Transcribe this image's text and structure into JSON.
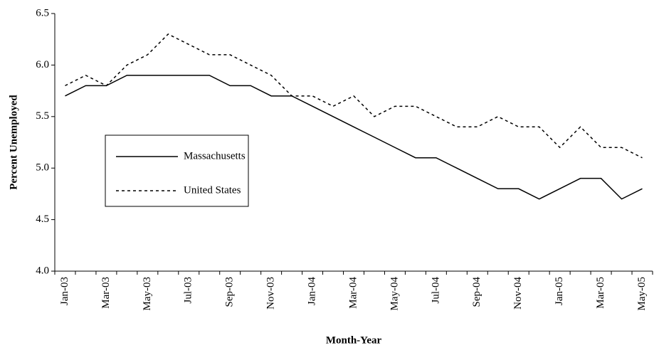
{
  "chart_data": {
    "type": "line",
    "x_label": "Month-Year",
    "y_label": "Percent Unemployed",
    "categories": [
      "Jan-03",
      null,
      "Mar-03",
      null,
      "May-03",
      null,
      "Jul-03",
      null,
      "Sep-03",
      null,
      "Nov-03",
      null,
      "Jan-04",
      null,
      "Mar-04",
      null,
      "May-04",
      null,
      "Jul-04",
      null,
      "Sep-04",
      null,
      "Nov-04",
      null,
      "Jan-05",
      null,
      "Mar-05",
      null,
      "May-05"
    ],
    "series": [
      {
        "name": "Massachusetts",
        "color": "#000000",
        "style": "solid",
        "values": [
          5.7,
          5.8,
          5.8,
          5.9,
          5.9,
          5.9,
          5.9,
          5.9,
          5.8,
          5.8,
          5.7,
          5.7,
          5.6,
          5.5,
          5.4,
          5.3,
          5.2,
          5.1,
          5.1,
          5.0,
          4.9,
          4.8,
          4.8,
          4.7,
          4.8,
          4.9,
          4.9,
          4.7,
          4.8
        ]
      },
      {
        "name": "United States",
        "color": "#000000",
        "style": "dashed",
        "values": [
          5.8,
          5.9,
          5.8,
          6.0,
          6.1,
          6.3,
          6.2,
          6.1,
          6.1,
          6.0,
          5.9,
          5.7,
          5.7,
          5.6,
          5.7,
          5.5,
          5.6,
          5.6,
          5.5,
          5.4,
          5.4,
          5.5,
          5.4,
          5.4,
          5.2,
          5.4,
          5.2,
          5.2,
          5.1
        ]
      }
    ],
    "ylim": [
      4.0,
      6.5
    ],
    "yticks": [
      {
        "value": 4.0,
        "label": "4.0"
      },
      4.5,
      {
        "value": 5.0,
        "label": "5.0"
      },
      5.5,
      {
        "value": 6.0,
        "label": "6.0"
      },
      6.5
    ],
    "grid": false,
    "legend": "center-left"
  }
}
